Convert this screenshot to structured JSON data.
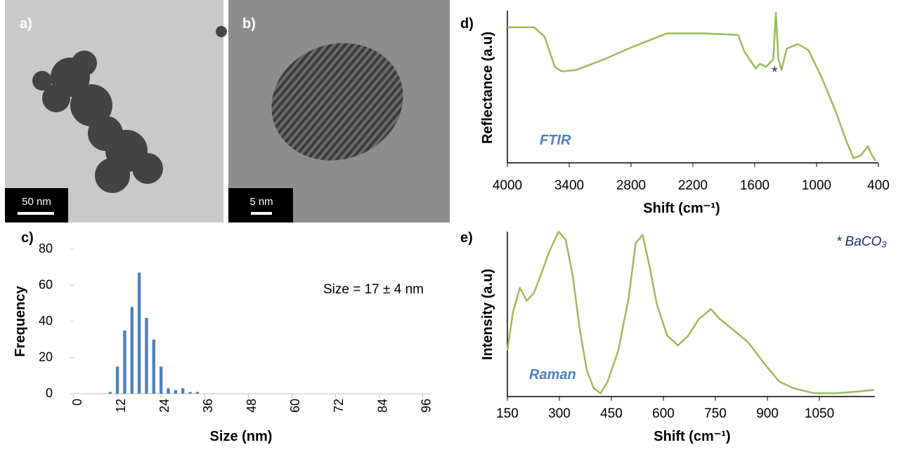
{
  "images": [
    {
      "panel": "a)",
      "scale_bar": "50 nm"
    },
    {
      "panel": "b)",
      "scale_bar": "5 nm"
    }
  ],
  "chart_data": [
    {
      "type": "bar",
      "panel": "c)",
      "x_label": "Size (nm)",
      "y_label": "Frequency",
      "annotation": "Size = 17 ± 4 nm",
      "x": [
        10,
        12,
        14,
        16,
        18,
        20,
        22,
        24,
        26,
        28,
        30,
        32,
        34
      ],
      "values": [
        1,
        15,
        35,
        48,
        67,
        42,
        30,
        15,
        3,
        2,
        3,
        1,
        1
      ],
      "color": "#4f81bd",
      "xlim": [
        0,
        98
      ],
      "xticks": [
        0,
        12,
        24,
        36,
        48,
        60,
        72,
        84,
        96
      ],
      "ylim": [
        0,
        80
      ],
      "yticks": [
        0,
        20,
        40,
        60,
        80
      ]
    },
    {
      "type": "line",
      "panel": "d)",
      "label": "FTIR",
      "x_label": "Shift (cm⁻¹)",
      "y_label": "Reflectance (a.u)",
      "annotation": "*",
      "x": [
        4000,
        3740,
        3640,
        3540,
        3470,
        3330,
        3060,
        2790,
        2450,
        2100,
        1760,
        1700,
        1590,
        1550,
        1490,
        1420,
        1395,
        1370,
        1340,
        1290,
        1180,
        1080,
        950,
        810,
        710,
        640,
        570,
        500,
        470,
        430
      ],
      "values": [
        89,
        89,
        83,
        63,
        60,
        61,
        68,
        76,
        85,
        85,
        84,
        73,
        62,
        65,
        63,
        68,
        98.5,
        68,
        61,
        75,
        78,
        74,
        56,
        33,
        14,
        3,
        5,
        11,
        6,
        1.5
      ],
      "color": "#9bbb59",
      "xlim": [
        4000,
        400
      ],
      "xticks": [
        4000,
        3400,
        2800,
        2200,
        1600,
        1000,
        400
      ],
      "ylim": [
        0,
        100
      ]
    },
    {
      "type": "line",
      "panel": "e)",
      "label": "Raman",
      "x_label": "Shift (cm⁻¹)",
      "y_label": "Intensity (a.u)",
      "annotation": "* BaCO₃",
      "x": [
        150,
        166,
        186,
        206,
        227,
        247,
        271,
        298,
        318,
        338,
        358,
        379,
        399,
        419,
        439,
        470,
        500,
        520,
        540,
        560,
        581,
        611,
        642,
        672,
        702,
        737,
        763,
        804,
        844,
        895,
        935,
        976,
        1036,
        1097,
        1158,
        1208
      ],
      "values": [
        28,
        51,
        66,
        58,
        63,
        74,
        88,
        100,
        95,
        74,
        42,
        16,
        5,
        2,
        9,
        28,
        60,
        93,
        98,
        79,
        56,
        37,
        31,
        37,
        47,
        53,
        47,
        40,
        33,
        19,
        9,
        5,
        2,
        2,
        3,
        4
      ],
      "color": "#9bbb59",
      "xlim": [
        150,
        1210
      ],
      "xticks": [
        150,
        300,
        450,
        600,
        750,
        900,
        1050
      ],
      "ylim": [
        0,
        100
      ]
    }
  ]
}
